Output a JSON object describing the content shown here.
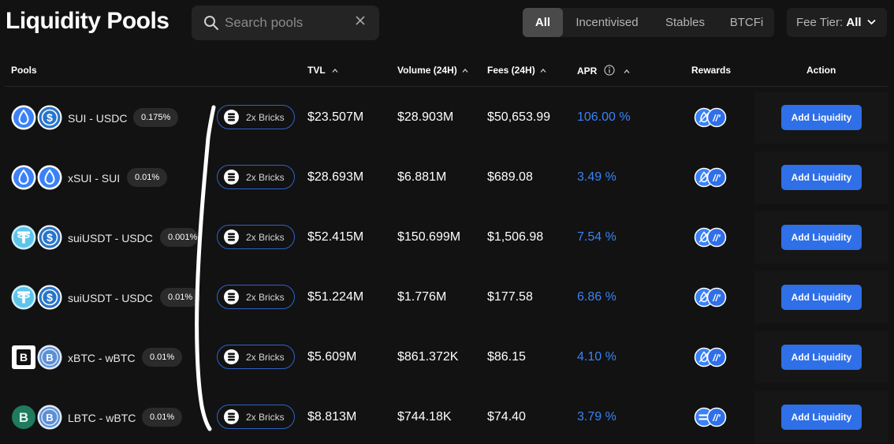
{
  "page": {
    "title": "Liquidity Pools"
  },
  "search": {
    "placeholder": "Search pools",
    "value": ""
  },
  "filters": [
    {
      "label": "All",
      "active": true
    },
    {
      "label": "Incentivised",
      "active": false
    },
    {
      "label": "Stables",
      "active": false
    },
    {
      "label": "BTCFi",
      "active": false
    }
  ],
  "fee_tier": {
    "label": "Fee Tier:",
    "value": "All"
  },
  "columns": {
    "pools": "Pools",
    "tvl": "TVL",
    "volume": "Volume (24H)",
    "fees": "Fees (24H)",
    "apr": "APR",
    "rewards": "Rewards",
    "action": "Action"
  },
  "colors": {
    "accent": "#2f6fe8",
    "apr": "#3b82f6",
    "background": "#121212"
  },
  "pools": [
    {
      "name": "SUI - USDC",
      "fee": "0.175%",
      "bricks": "2x Bricks",
      "tvl": "$23.507M",
      "volume": "$28.903M",
      "fees": "$50,653.99",
      "apr": "106.00 %",
      "tokens": [
        "sui-icon",
        "usdc-icon"
      ],
      "rewards": [
        "sui-reward-icon",
        "partner-reward-icon"
      ],
      "action": "Add Liquidity"
    },
    {
      "name": "xSUI - SUI",
      "fee": "0.01%",
      "bricks": "2x Bricks",
      "tvl": "$28.693M",
      "volume": "$6.881M",
      "fees": "$689.08",
      "apr": "3.49 %",
      "tokens": [
        "xsui-icon",
        "sui-icon"
      ],
      "rewards": [
        "sui-reward-icon",
        "partner-reward-icon"
      ],
      "action": "Add Liquidity"
    },
    {
      "name": "suiUSDT - USDC",
      "fee": "0.001%",
      "bricks": "2x Bricks",
      "tvl": "$52.415M",
      "volume": "$150.699M",
      "fees": "$1,506.98",
      "apr": "7.54 %",
      "tokens": [
        "tether-icon",
        "usdc-icon"
      ],
      "rewards": [
        "sui-reward-icon",
        "partner-reward-icon"
      ],
      "action": "Add Liquidity"
    },
    {
      "name": "suiUSDT - USDC",
      "fee": "0.01%",
      "bricks": "2x Bricks",
      "tvl": "$51.224M",
      "volume": "$1.776M",
      "fees": "$177.58",
      "apr": "6.86 %",
      "tokens": [
        "tether-icon",
        "usdc-icon"
      ],
      "rewards": [
        "sui-reward-icon",
        "partner-reward-icon"
      ],
      "action": "Add Liquidity"
    },
    {
      "name": "xBTC - wBTC",
      "fee": "0.01%",
      "bricks": "2x Bricks",
      "tvl": "$5.609M",
      "volume": "$861.372K",
      "fees": "$86.15",
      "apr": "4.10 %",
      "tokens": [
        "xbtc-icon",
        "wbtc-icon"
      ],
      "rewards": [
        "sui-reward-icon",
        "partner-reward-icon"
      ],
      "action": "Add Liquidity"
    },
    {
      "name": "LBTC - wBTC",
      "fee": "0.01%",
      "bricks": "2x Bricks",
      "tvl": "$8.813M",
      "volume": "$744.18K",
      "fees": "$74.40",
      "apr": "3.79 %",
      "tokens": [
        "lbtc-icon",
        "wbtc-icon"
      ],
      "rewards": [
        "lombard-reward-icon",
        "partner-reward-icon"
      ],
      "action": "Add Liquidity"
    }
  ]
}
